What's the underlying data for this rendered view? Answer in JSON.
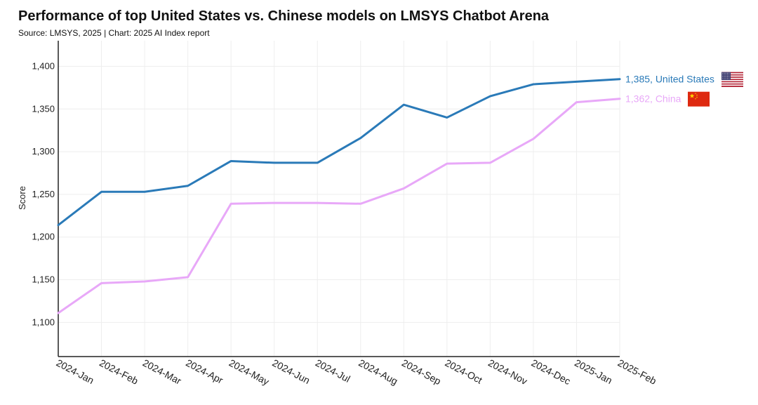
{
  "chart_data": {
    "type": "line",
    "title": "Performance of top United States vs. Chinese models on LMSYS Chatbot Arena",
    "subtitle": "Source: LMSYS, 2025 | Chart: 2025 AI Index report",
    "xlabel": "",
    "ylabel": "Score",
    "ylim": [
      1060,
      1430
    ],
    "yticks": [
      1100,
      1150,
      1200,
      1250,
      1300,
      1350,
      1400
    ],
    "ytick_labels": [
      "1,100",
      "1,150",
      "1,200",
      "1,250",
      "1,300",
      "1,350",
      "1,400"
    ],
    "categories": [
      "2024-Jan",
      "2024-Feb",
      "2024-Mar",
      "2024-Apr",
      "2024-May",
      "2024-Jun",
      "2024-Jul",
      "2024-Aug",
      "2024-Sep",
      "2024-Oct",
      "2024-Nov",
      "2024-Dec",
      "2025-Jan",
      "2025-Feb"
    ],
    "grid": true,
    "series": [
      {
        "name": "United States",
        "color": "#2a7ab8",
        "values": [
          1214,
          1253,
          1253,
          1260,
          1289,
          1287,
          1287,
          1316,
          1355,
          1340,
          1365,
          1379,
          1382,
          1385
        ],
        "end_label": "1,385, United States",
        "flag": "us-flag-icon"
      },
      {
        "name": "China",
        "color": "#e8a8f8",
        "values": [
          1111,
          1146,
          1148,
          1153,
          1239,
          1240,
          1240,
          1239,
          1257,
          1286,
          1287,
          1315,
          1358,
          1362
        ],
        "end_label": "1,362, China",
        "flag": "china-flag-icon"
      }
    ]
  }
}
